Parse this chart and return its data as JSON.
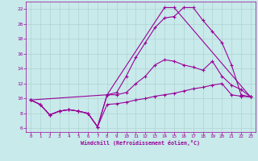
{
  "xlabel": "Windchill (Refroidissement éolien,°C)",
  "bg_color": "#c8eaea",
  "line_color": "#990099",
  "grid_color": "#aacccc",
  "xlim": [
    -0.5,
    23.5
  ],
  "ylim": [
    5.5,
    23.0
  ],
  "xticks": [
    0,
    1,
    2,
    3,
    4,
    5,
    6,
    7,
    8,
    9,
    10,
    11,
    12,
    13,
    14,
    15,
    16,
    17,
    18,
    19,
    20,
    21,
    22,
    23
  ],
  "yticks": [
    6,
    8,
    10,
    12,
    14,
    16,
    18,
    20,
    22
  ],
  "curve_big_x": [
    0,
    1,
    2,
    3,
    4,
    5,
    6,
    7,
    8,
    9,
    10,
    11,
    12,
    13,
    14,
    15,
    16,
    17,
    18,
    19,
    20,
    21,
    22,
    23
  ],
  "curve_big_y": [
    9.8,
    9.2,
    7.8,
    8.3,
    8.5,
    8.3,
    8.0,
    6.2,
    10.5,
    10.8,
    13.0,
    15.5,
    17.5,
    19.5,
    20.8,
    21.0,
    22.2,
    22.2,
    20.5,
    19.0,
    17.5,
    14.5,
    10.5,
    10.2
  ],
  "curve_mid_x": [
    0,
    1,
    2,
    3,
    4,
    5,
    6,
    7,
    8,
    9,
    10,
    11,
    12,
    13,
    14,
    15,
    16,
    17,
    18,
    19,
    20,
    21,
    22,
    23
  ],
  "curve_mid_y": [
    9.8,
    9.2,
    7.8,
    8.3,
    8.5,
    8.3,
    8.0,
    6.2,
    10.5,
    10.5,
    10.8,
    12.0,
    13.0,
    14.5,
    15.2,
    15.0,
    14.5,
    14.2,
    13.8,
    15.0,
    13.0,
    11.8,
    11.2,
    10.2
  ],
  "curve_low_x": [
    0,
    1,
    2,
    3,
    4,
    5,
    6,
    7,
    8,
    9,
    10,
    11,
    12,
    13,
    14,
    15,
    16,
    17,
    18,
    19,
    20,
    21,
    22,
    23
  ],
  "curve_low_y": [
    9.8,
    9.2,
    7.8,
    8.3,
    8.5,
    8.3,
    8.0,
    6.2,
    9.2,
    9.3,
    9.5,
    9.8,
    10.0,
    10.3,
    10.5,
    10.7,
    11.0,
    11.3,
    11.5,
    11.8,
    12.0,
    10.5,
    10.3,
    10.2
  ],
  "curve_diag_x": [
    0,
    8,
    14,
    15,
    23
  ],
  "curve_diag_y": [
    9.8,
    10.5,
    22.2,
    22.2,
    10.2
  ]
}
